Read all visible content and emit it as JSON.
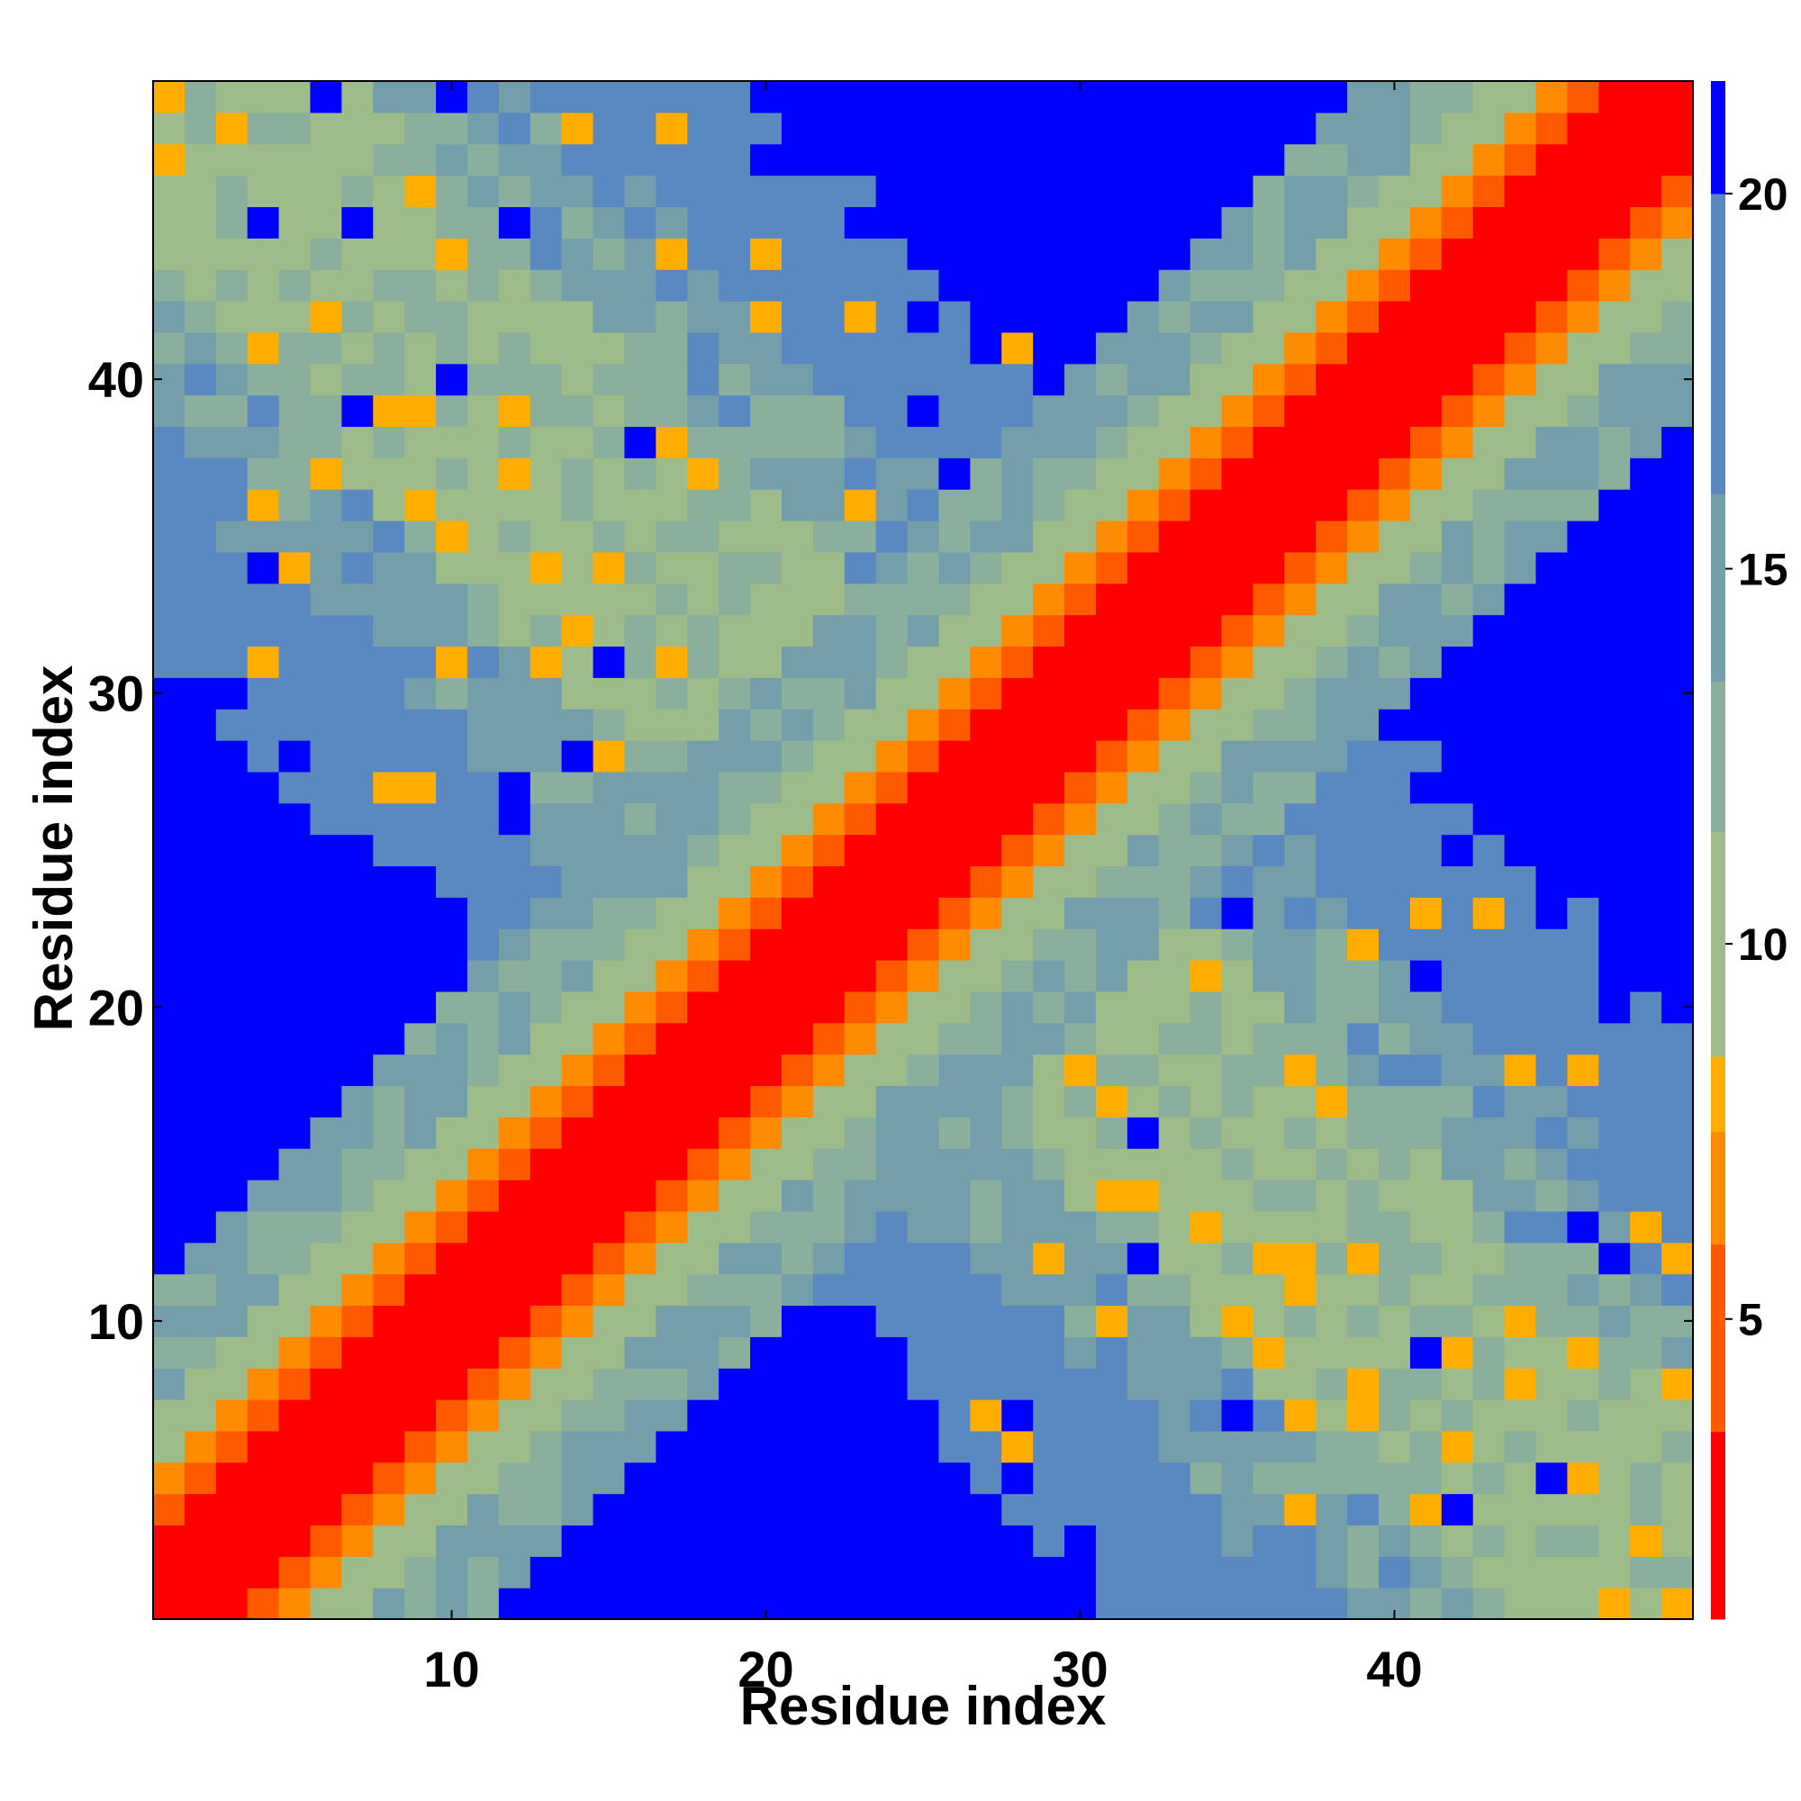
{
  "chart_data": {
    "type": "heatmap",
    "title": "",
    "xlabel": "Residue index",
    "ylabel": "Residue index",
    "x_range": [
      0.5,
      49.5
    ],
    "y_range": [
      0.5,
      49.5
    ],
    "x_ticks": [
      10,
      20,
      30,
      40
    ],
    "y_ticks": [
      10,
      20,
      30,
      40
    ],
    "x_tick_labels": [
      "10",
      "20",
      "30",
      "40"
    ],
    "y_tick_labels": [
      "10",
      "20",
      "30",
      "40"
    ],
    "grid": false,
    "colorbar": {
      "placement": "right",
      "range": [
        1,
        21.5
      ],
      "ticks": [
        5,
        10,
        15,
        20
      ],
      "tick_labels": [
        "5",
        "10",
        "15",
        "20"
      ],
      "bins": [
        {
          "from": 1.0,
          "to": 3.5,
          "color": "#ff0000"
        },
        {
          "from": 3.5,
          "to": 6.0,
          "color": "#ff5a00"
        },
        {
          "from": 6.0,
          "to": 7.5,
          "color": "#ff8c00"
        },
        {
          "from": 7.5,
          "to": 8.5,
          "color": "#ffae00"
        },
        {
          "from": 8.5,
          "to": 11.5,
          "color": "#9ebb8a"
        },
        {
          "from": 11.5,
          "to": 13.5,
          "color": "#8aaf9c"
        },
        {
          "from": 13.5,
          "to": 16.0,
          "color": "#759eab"
        },
        {
          "from": 16.0,
          "to": 20.0,
          "color": "#5a88c0"
        },
        {
          "from": 20.0,
          "to": 21.5,
          "color": "#0000ff"
        }
      ]
    },
    "matrix_description": "Symmetric contact-distance map of residues 1-49; values are estimated distances (colorbar units) read from the color bins.",
    "matrix": []
  }
}
